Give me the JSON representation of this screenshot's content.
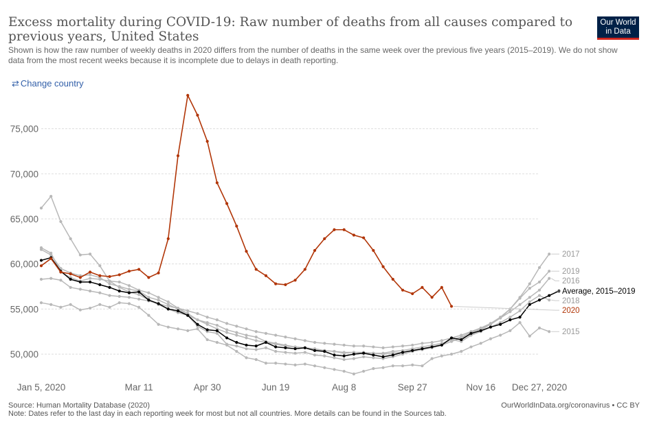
{
  "header": {
    "title": "Excess mortality during COVID-19: Raw number of deaths from all causes compared to previous years, United States",
    "subtitle": "Shown is how the raw number of weekly deaths in 2020 differs from the number of deaths in the same week over the previous five years (2015–2019). We do not show data from the most recent weeks because it is incomplete due to delays in death reporting.",
    "logo_line1": "Our World",
    "logo_line2": "in Data"
  },
  "controls": {
    "change_country": "Change country",
    "change_country_icon": "swap-arrows-icon"
  },
  "footer": {
    "source": "Source: Human Mortality Database (2020)",
    "note": "Note: Dates refer to the last day in each reporting week for most but not all countries. More details can be found in the Sources tab.",
    "credit": "OurWorldInData.org/coronavirus • CC BY"
  },
  "colors": {
    "highlight_2020": "#b13507",
    "average": "#000000",
    "past_years": "#b8b8b8",
    "grid": "#dddddd",
    "logo_bg": "#002147",
    "logo_accent": "#ce261e",
    "link": "#3360a9"
  },
  "chart_data": {
    "type": "line",
    "x_unit": "week of year (1–53)",
    "ylim": [
      47800,
      79000
    ],
    "y_ticks": [
      50000,
      55000,
      60000,
      65000,
      70000,
      75000
    ],
    "y_tick_labels": [
      "50,000",
      "55,000",
      "60,000",
      "65,000",
      "70,000",
      "75,000"
    ],
    "x_ticks": [
      {
        "x": 1,
        "label": "Jan 5, 2020"
      },
      {
        "x": 11,
        "label": "Mar 11"
      },
      {
        "x": 18,
        "label": "Apr 30"
      },
      {
        "x": 25,
        "label": "Jun 19"
      },
      {
        "x": 32,
        "label": "Aug 8"
      },
      {
        "x": 39,
        "label": "Sep 27"
      },
      {
        "x": 46,
        "label": "Nov 16"
      },
      {
        "x": 52,
        "label": "Dec 27, 2020"
      }
    ],
    "grid": "horizontal dashed",
    "legend_placement": "right (line labels)",
    "series": [
      {
        "name": "2017",
        "color": "#b8b8b8",
        "x_start": 1,
        "values": [
          66200,
          67500,
          64700,
          62800,
          61000,
          61100,
          59800,
          58100,
          57400,
          56900,
          56600,
          56000,
          55500,
          55000,
          54600,
          54300,
          53800,
          53500,
          53200,
          52700,
          52400,
          52100,
          51900,
          51400,
          51200,
          51000,
          50800,
          50700,
          50600,
          50400,
          50300,
          50100,
          50200,
          50200,
          50100,
          50100,
          50300,
          50400,
          50600,
          50800,
          51000,
          51200,
          51600,
          51900,
          52400,
          52800,
          53400,
          54100,
          55000,
          56300,
          57800,
          59600,
          61100
        ]
      },
      {
        "name": "2019",
        "color": "#b8b8b8",
        "x_start": 1,
        "values": [
          61800,
          61200,
          59100,
          58500,
          58100,
          58400,
          58300,
          58100,
          58000,
          57600,
          57100,
          56800,
          56300,
          55800,
          55100,
          54500,
          53800,
          53300,
          52800,
          52400,
          52100,
          51800,
          51500,
          51300,
          51100,
          50900,
          50800,
          50700,
          50500,
          50400,
          50300,
          50200,
          50200,
          50100,
          50100,
          50000,
          50100,
          50200,
          50400,
          50500,
          50700,
          51000,
          51400,
          51800,
          52200,
          52700,
          53300,
          54000,
          55000,
          56200,
          57300,
          58000,
          59200
        ]
      },
      {
        "name": "2016",
        "color": "#b8b8b8",
        "x_start": 1,
        "values": [
          58300,
          58400,
          58200,
          57400,
          57200,
          57000,
          56800,
          56500,
          56400,
          56300,
          56100,
          55900,
          55600,
          55300,
          55100,
          54800,
          54500,
          54100,
          53800,
          53400,
          53100,
          52800,
          52500,
          52300,
          52100,
          51900,
          51700,
          51500,
          51300,
          51200,
          51100,
          51000,
          50900,
          50900,
          50800,
          50700,
          50800,
          50900,
          51000,
          51200,
          51300,
          51500,
          51800,
          52100,
          52500,
          52900,
          53400,
          54000,
          54700,
          55500,
          56300,
          57100,
          58400
        ]
      },
      {
        "name": "Average, 2015–2019",
        "color": "#000000",
        "x_start": 1,
        "values": [
          60400,
          60700,
          59200,
          58300,
          58000,
          58000,
          57700,
          57400,
          57000,
          56800,
          56900,
          56000,
          55600,
          55000,
          54800,
          54300,
          53300,
          52700,
          52600,
          51800,
          51300,
          51000,
          50900,
          51300,
          50800,
          50700,
          50600,
          50700,
          50400,
          50300,
          49900,
          49800,
          50000,
          50100,
          49900,
          49700,
          49900,
          50200,
          50400,
          50600,
          50800,
          51000,
          51800,
          51600,
          52300,
          52600,
          53000,
          53300,
          53800,
          54100,
          55500,
          56000,
          56500,
          57000
        ]
      },
      {
        "name": "2018",
        "color": "#b8b8b8",
        "x_start": 1,
        "values": [
          61600,
          61000,
          59500,
          59000,
          58700,
          58800,
          58500,
          57800,
          57500,
          57200,
          57000,
          56300,
          56000,
          55500,
          55000,
          54300,
          53100,
          52500,
          52300,
          51100,
          50900,
          50600,
          50500,
          50700,
          50300,
          50200,
          50100,
          50200,
          49900,
          49800,
          49600,
          49400,
          49500,
          49700,
          49600,
          49500,
          49700,
          50000,
          50300,
          50500,
          50800,
          51100,
          51600,
          51400,
          52100,
          52500,
          53000,
          53500,
          54100,
          54800,
          55800,
          56500,
          56000
        ]
      },
      {
        "name": "2020",
        "color": "#b13507",
        "x_start": 1,
        "values": [
          59800,
          60600,
          59100,
          58900,
          58500,
          59100,
          58700,
          58600,
          58800,
          59200,
          59400,
          58500,
          59000,
          62800,
          72000,
          78700,
          76500,
          73600,
          69000,
          66700,
          64200,
          61400,
          59400,
          58700,
          57800,
          57700,
          58200,
          59400,
          61500,
          62800,
          63800,
          63800,
          63200,
          62900,
          61500,
          59700,
          58300,
          57100,
          56700,
          57400,
          56300,
          57400,
          55300
        ]
      },
      {
        "name": "2015",
        "color": "#b8b8b8",
        "x_start": 1,
        "values": [
          55700,
          55500,
          55200,
          55500,
          54900,
          55100,
          55500,
          55200,
          55700,
          55600,
          55200,
          54300,
          53300,
          53000,
          52800,
          52600,
          52800,
          51600,
          51300,
          51000,
          50300,
          49600,
          49400,
          49000,
          49000,
          48900,
          48800,
          48900,
          48700,
          48500,
          48300,
          48100,
          47800,
          48100,
          48400,
          48500,
          48700,
          48700,
          48800,
          48700,
          49500,
          49800,
          50000,
          50300,
          50800,
          51200,
          51700,
          52100,
          52600,
          53500,
          52000,
          52900,
          52500
        ]
      }
    ],
    "line_labels": [
      {
        "text": "2017",
        "series": "2017"
      },
      {
        "text": "2019",
        "series": "2019"
      },
      {
        "text": "2016",
        "series": "2016"
      },
      {
        "text": "Average, 2015–2019",
        "series": "Average, 2015–2019"
      },
      {
        "text": "2018",
        "series": "2018"
      },
      {
        "text": "2020",
        "series": "2020"
      },
      {
        "text": "2015",
        "series": "2015"
      }
    ]
  }
}
